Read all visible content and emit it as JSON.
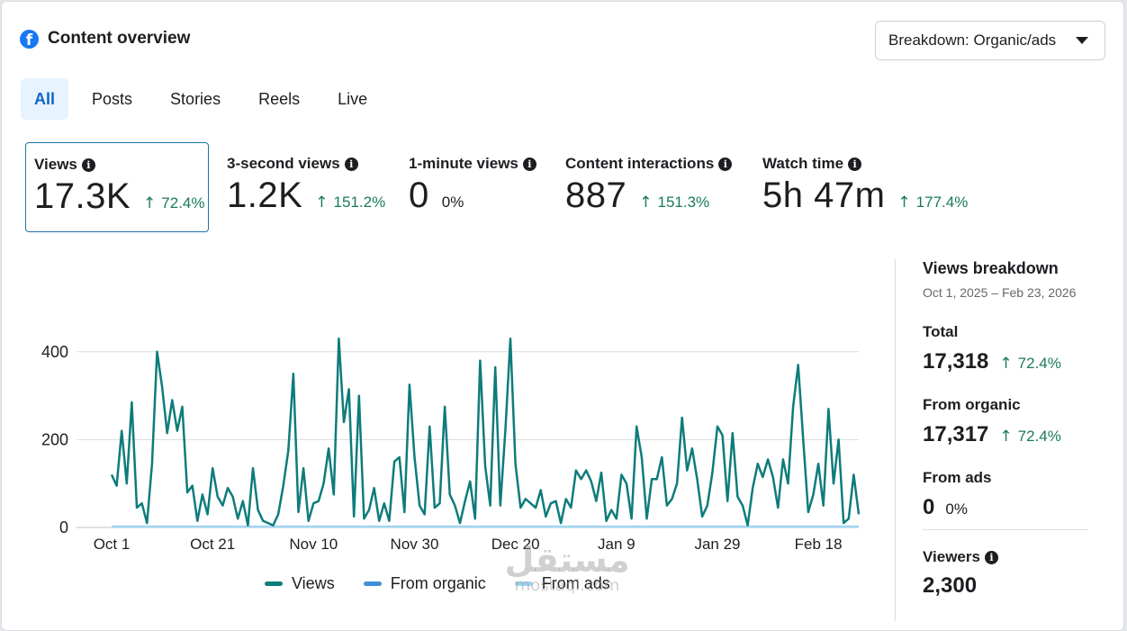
{
  "header": {
    "title": "Content overview",
    "icon": "facebook-icon",
    "icon_glyph": "f"
  },
  "breakdown_dropdown": {
    "label": "Breakdown: Organic/ads"
  },
  "tabs": [
    {
      "label": "All",
      "active": true
    },
    {
      "label": "Posts",
      "active": false
    },
    {
      "label": "Stories",
      "active": false
    },
    {
      "label": "Reels",
      "active": false
    },
    {
      "label": "Live",
      "active": false
    }
  ],
  "metrics": [
    {
      "label": "Views",
      "value": "17.3K",
      "change": "72.4%",
      "direction": "up",
      "selected": true
    },
    {
      "label": "3-second views",
      "value": "1.2K",
      "change": "151.2%",
      "direction": "up"
    },
    {
      "label": "1-minute views",
      "value": "0",
      "change": "0%",
      "direction": "flat"
    },
    {
      "label": "Content interactions",
      "value": "887",
      "change": "151.3%",
      "direction": "up"
    },
    {
      "label": "Watch time",
      "value": "5h 47m",
      "change": "177.4%",
      "direction": "up"
    }
  ],
  "chart_data": {
    "type": "line",
    "x_tick_labels": [
      "Oct 1",
      "Oct 21",
      "Nov 10",
      "Nov 30",
      "Dec 20",
      "Jan 9",
      "Jan 29",
      "Feb 18"
    ],
    "y_ticks": [
      0,
      200,
      400
    ],
    "ylim": [
      0,
      500
    ],
    "grid": true,
    "legend_position": "bottom",
    "series": [
      {
        "name": "Views",
        "color": "#0e7c7b",
        "values": [
          120,
          95,
          220,
          100,
          285,
          45,
          55,
          10,
          145,
          400,
          320,
          215,
          290,
          220,
          275,
          80,
          95,
          15,
          75,
          30,
          135,
          70,
          50,
          90,
          70,
          20,
          60,
          5,
          135,
          40,
          15,
          10,
          5,
          30,
          95,
          175,
          350,
          35,
          135,
          15,
          55,
          60,
          100,
          180,
          75,
          430,
          240,
          315,
          25,
          300,
          20,
          40,
          90,
          15,
          55,
          15,
          150,
          160,
          35,
          325,
          160,
          50,
          30,
          230,
          45,
          55,
          275,
          75,
          50,
          10,
          60,
          105,
          20,
          380,
          140,
          50,
          365,
          50,
          220,
          430,
          145,
          45,
          65,
          55,
          45,
          85,
          25,
          55,
          60,
          10,
          65,
          45,
          130,
          110,
          130,
          105,
          60,
          125,
          15,
          40,
          20,
          120,
          100,
          20,
          230,
          160,
          20,
          110,
          110,
          160,
          50,
          65,
          100,
          250,
          130,
          180,
          110,
          25,
          50,
          125,
          230,
          210,
          60,
          215,
          70,
          50,
          5,
          90,
          145,
          115,
          155,
          115,
          45,
          155,
          100,
          275,
          370,
          200,
          35,
          75,
          145,
          50,
          270,
          100,
          200,
          10,
          20,
          120,
          30
        ],
        "start_label": "Oct 1",
        "end_label": "Feb 23"
      },
      {
        "name": "From organic",
        "color": "#3f8fd8",
        "values_note": "overlaps Views"
      },
      {
        "name": "From ads",
        "color": "#9fd5f2",
        "constant_value": 0
      }
    ]
  },
  "views_breakdown": {
    "title": "Views breakdown",
    "dates": "Oct 1, 2025 – Feb 23, 2026",
    "items": [
      {
        "label": "Total",
        "value": "17,318",
        "change": "72.4%",
        "direction": "up"
      },
      {
        "label": "From organic",
        "value": "17,317",
        "change": "72.4%",
        "direction": "up"
      },
      {
        "label": "From ads",
        "value": "0",
        "change": "0%",
        "direction": "flat"
      }
    ],
    "viewers": {
      "label": "Viewers",
      "value": "2,300"
    }
  },
  "watermark": {
    "arabic": "مستقل",
    "latin": "mostaqi.com"
  }
}
